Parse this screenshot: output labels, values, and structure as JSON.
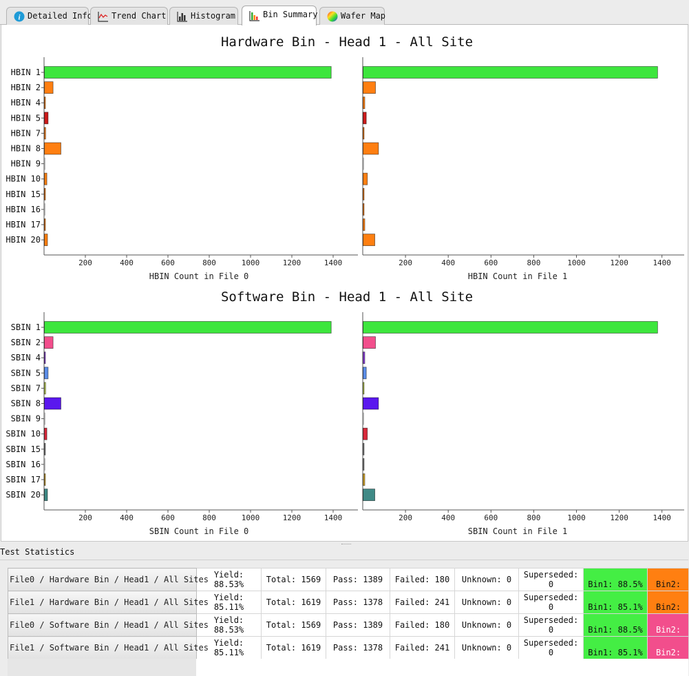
{
  "tabs": [
    {
      "label": "Detailed Info",
      "icon": "info-icon",
      "active": false
    },
    {
      "label": "Trend Chart",
      "icon": "trend-chart-icon",
      "active": false
    },
    {
      "label": "Histogram",
      "icon": "histogram-icon",
      "active": false
    },
    {
      "label": "Bin Summary",
      "icon": "bin-summary-icon",
      "active": true
    },
    {
      "label": "Wafer Map",
      "icon": "wafer-map-icon",
      "active": false
    }
  ],
  "colors": {
    "pass": "#3de63d",
    "hbin_fail": "#ff7f11",
    "hbin_dark": "#cc1b1b"
  },
  "chart_data": [
    {
      "type": "bar",
      "orientation": "horizontal",
      "title": "Hardware Bin - Head 1 - All Site",
      "categories": [
        "HBIN 1",
        "HBIN 2",
        "HBIN 4",
        "HBIN 5",
        "HBIN 7",
        "HBIN 8",
        "HBIN 9",
        "HBIN 10",
        "HBIN 15",
        "HBIN 16",
        "HBIN 17",
        "HBIN 20"
      ],
      "series": [
        {
          "name": "File 0",
          "xlabel": "HBIN Count in File 0",
          "values": [
            1389,
            42,
            5,
            18,
            6,
            80,
            0,
            12,
            1,
            0,
            2,
            15
          ],
          "colors": [
            "#3de63d",
            "#ff7f11",
            "#ff7f11",
            "#cc1b1b",
            "#ff7f11",
            "#ff7f11",
            "#ff7f11",
            "#ff7f11",
            "#ff7f11",
            "#ff7f11",
            "#ff7f11",
            "#ff7f11"
          ]
        },
        {
          "name": "File 1",
          "xlabel": "HBIN Count in File 1",
          "values": [
            1378,
            58,
            8,
            15,
            2,
            72,
            0,
            20,
            1,
            3,
            8,
            55
          ],
          "colors": [
            "#3de63d",
            "#ff7f11",
            "#ff7f11",
            "#cc1b1b",
            "#ff7f11",
            "#ff7f11",
            "#ff7f11",
            "#ff7f11",
            "#ff7f11",
            "#ff7f11",
            "#ff7f11",
            "#ff7f11"
          ]
        }
      ],
      "ticks": [
        200,
        400,
        600,
        800,
        1000,
        1200,
        1400
      ],
      "xlim": [
        0,
        1500
      ]
    },
    {
      "type": "bar",
      "orientation": "horizontal",
      "title": "Software Bin - Head 1 - All Site",
      "categories": [
        "SBIN 1",
        "SBIN 2",
        "SBIN 4",
        "SBIN 5",
        "SBIN 7",
        "SBIN 8",
        "SBIN 9",
        "SBIN 10",
        "SBIN 15",
        "SBIN 16",
        "SBIN 17",
        "SBIN 20"
      ],
      "series": [
        {
          "name": "File 0",
          "xlabel": "SBIN Count in File 0",
          "values": [
            1389,
            42,
            5,
            18,
            6,
            80,
            0,
            12,
            1,
            0,
            2,
            15
          ],
          "colors": [
            "#3de63d",
            "#f24e8c",
            "#8b3fd9",
            "#5b8de8",
            "#c2d64f",
            "#5a18ee",
            "#999999",
            "#d8283a",
            "#8a8a8a",
            "#8a8a8a",
            "#d4a52a",
            "#3f8a86"
          ]
        },
        {
          "name": "File 1",
          "xlabel": "SBIN Count in File 1",
          "values": [
            1378,
            58,
            8,
            15,
            2,
            72,
            0,
            20,
            1,
            3,
            8,
            55
          ],
          "colors": [
            "#3de63d",
            "#f24e8c",
            "#8b3fd9",
            "#5b8de8",
            "#c2d64f",
            "#5a18ee",
            "#999999",
            "#d8283a",
            "#8a8a8a",
            "#8a8a8a",
            "#d4a52a",
            "#3f8a86"
          ]
        }
      ],
      "ticks": [
        200,
        400,
        600,
        800,
        1000,
        1200,
        1400
      ],
      "xlim": [
        0,
        1500
      ]
    }
  ],
  "stats": {
    "label": "Test Statistics",
    "rows": [
      {
        "name": "File0 / Hardware Bin / Head1 / All Sites",
        "yield": "Yield: 88.53%",
        "total": "Total: 1569",
        "pass": "Pass: 1389",
        "failed": "Failed: 180",
        "unknown": "Unknown: 0",
        "superseded": "Superseded: 0",
        "bin1": "Bin1: 88.5%",
        "bin2": "Bin2:",
        "kind": "hw"
      },
      {
        "name": "File1 / Hardware Bin / Head1 / All Sites",
        "yield": "Yield: 85.11%",
        "total": "Total: 1619",
        "pass": "Pass: 1378",
        "failed": "Failed: 241",
        "unknown": "Unknown: 0",
        "superseded": "Superseded: 0",
        "bin1": "Bin1: 85.1%",
        "bin2": "Bin2:",
        "kind": "hw"
      },
      {
        "name": "File0 / Software Bin / Head1 / All Sites",
        "yield": "Yield: 88.53%",
        "total": "Total: 1569",
        "pass": "Pass: 1389",
        "failed": "Failed: 180",
        "unknown": "Unknown: 0",
        "superseded": "Superseded: 0",
        "bin1": "Bin1: 88.5%",
        "bin2": "Bin2:",
        "kind": "sw"
      },
      {
        "name": "File1 / Software Bin / Head1 / All Sites",
        "yield": "Yield: 85.11%",
        "total": "Total: 1619",
        "pass": "Pass: 1378",
        "failed": "Failed: 241",
        "unknown": "Unknown: 0",
        "superseded": "Superseded: 0",
        "bin1": "Bin1: 85.1%",
        "bin2": "Bin2:",
        "kind": "sw"
      }
    ]
  }
}
